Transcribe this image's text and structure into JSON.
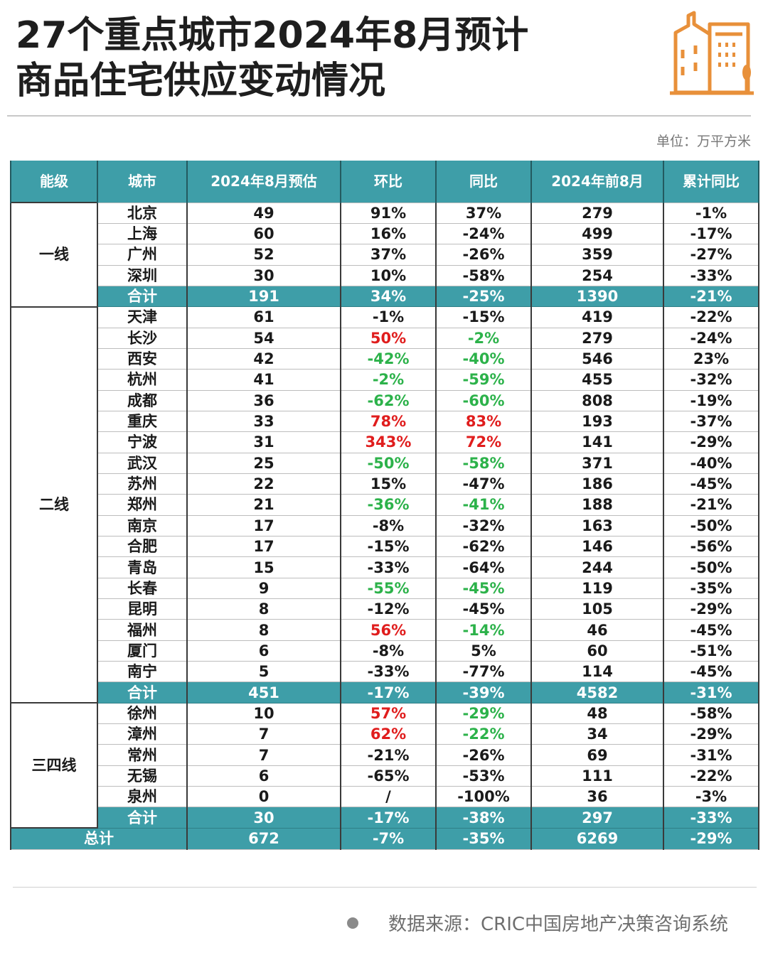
{
  "title": {
    "line1": "27个重点城市2024年8月预计",
    "line2": "商品住宅供应变动情况"
  },
  "logo_icon": "city-buildings-icon",
  "accent_color": "#3e9ea8",
  "unit": "单位：万平方米",
  "table": {
    "headers": [
      "能级",
      "城市",
      "2024年8月预估",
      "环比",
      "同比",
      "2024年前8月",
      "累计同比"
    ],
    "groups": [
      {
        "tier": "一线",
        "rows": [
          {
            "city": "北京",
            "est": "49",
            "mom": "91%",
            "yoy": "37%",
            "ytd": "279",
            "cum": "-1%"
          },
          {
            "city": "上海",
            "est": "60",
            "mom": "16%",
            "yoy": "-24%",
            "ytd": "499",
            "cum": "-17%"
          },
          {
            "city": "广州",
            "est": "52",
            "mom": "37%",
            "yoy": "-26%",
            "ytd": "359",
            "cum": "-27%"
          },
          {
            "city": "深圳",
            "est": "30",
            "mom": "10%",
            "yoy": "-58%",
            "ytd": "254",
            "cum": "-33%"
          }
        ],
        "subtotal": {
          "city": "合计",
          "est": "191",
          "mom": "34%",
          "yoy": "-25%",
          "ytd": "1390",
          "cum": "-21%"
        }
      },
      {
        "tier": "二线",
        "rows": [
          {
            "city": "天津",
            "est": "61",
            "mom": "-1%",
            "yoy": "-15%",
            "ytd": "419",
            "cum": "-22%"
          },
          {
            "city": "长沙",
            "est": "54",
            "mom": "50%",
            "mom_color": "red",
            "yoy": "-2%",
            "yoy_color": "green",
            "ytd": "279",
            "cum": "-24%"
          },
          {
            "city": "西安",
            "est": "42",
            "mom": "-42%",
            "mom_color": "green",
            "yoy": "-40%",
            "yoy_color": "green",
            "ytd": "546",
            "cum": "23%"
          },
          {
            "city": "杭州",
            "est": "41",
            "mom": "-2%",
            "mom_color": "green",
            "yoy": "-59%",
            "yoy_color": "green",
            "ytd": "455",
            "cum": "-32%"
          },
          {
            "city": "成都",
            "est": "36",
            "mom": "-62%",
            "mom_color": "green",
            "yoy": "-60%",
            "yoy_color": "green",
            "ytd": "808",
            "cum": "-19%"
          },
          {
            "city": "重庆",
            "est": "33",
            "mom": "78%",
            "mom_color": "red",
            "yoy": "83%",
            "yoy_color": "red",
            "ytd": "193",
            "cum": "-37%"
          },
          {
            "city": "宁波",
            "est": "31",
            "mom": "343%",
            "mom_color": "red",
            "yoy": "72%",
            "yoy_color": "red",
            "ytd": "141",
            "cum": "-29%"
          },
          {
            "city": "武汉",
            "est": "25",
            "mom": "-50%",
            "mom_color": "green",
            "yoy": "-58%",
            "yoy_color": "green",
            "ytd": "371",
            "cum": "-40%"
          },
          {
            "city": "苏州",
            "est": "22",
            "mom": "15%",
            "yoy": "-47%",
            "ytd": "186",
            "cum": "-45%"
          },
          {
            "city": "郑州",
            "est": "21",
            "mom": "-36%",
            "mom_color": "green",
            "yoy": "-41%",
            "yoy_color": "green",
            "ytd": "188",
            "cum": "-21%"
          },
          {
            "city": "南京",
            "est": "17",
            "mom": "-8%",
            "yoy": "-32%",
            "ytd": "163",
            "cum": "-50%"
          },
          {
            "city": "合肥",
            "est": "17",
            "mom": "-15%",
            "yoy": "-62%",
            "ytd": "146",
            "cum": "-56%"
          },
          {
            "city": "青岛",
            "est": "15",
            "mom": "-33%",
            "yoy": "-64%",
            "ytd": "244",
            "cum": "-50%"
          },
          {
            "city": "长春",
            "est": "9",
            "mom": "-55%",
            "mom_color": "green",
            "yoy": "-45%",
            "yoy_color": "green",
            "ytd": "119",
            "cum": "-35%"
          },
          {
            "city": "昆明",
            "est": "8",
            "mom": "-12%",
            "yoy": "-45%",
            "ytd": "105",
            "cum": "-29%"
          },
          {
            "city": "福州",
            "est": "8",
            "mom": "56%",
            "mom_color": "red",
            "yoy": "-14%",
            "yoy_color": "green",
            "ytd": "46",
            "cum": "-45%"
          },
          {
            "city": "厦门",
            "est": "6",
            "mom": "-8%",
            "yoy": "5%",
            "ytd": "60",
            "cum": "-51%"
          },
          {
            "city": "南宁",
            "est": "5",
            "mom": "-33%",
            "yoy": "-77%",
            "ytd": "114",
            "cum": "-45%"
          }
        ],
        "subtotal": {
          "city": "合计",
          "est": "451",
          "mom": "-17%",
          "yoy": "-39%",
          "ytd": "4582",
          "cum": "-31%"
        }
      },
      {
        "tier": "三四线",
        "rows": [
          {
            "city": "徐州",
            "est": "10",
            "mom": "57%",
            "mom_color": "red",
            "yoy": "-29%",
            "yoy_color": "green",
            "ytd": "48",
            "cum": "-58%"
          },
          {
            "city": "漳州",
            "est": "7",
            "mom": "62%",
            "mom_color": "red",
            "yoy": "-22%",
            "yoy_color": "green",
            "ytd": "34",
            "cum": "-29%"
          },
          {
            "city": "常州",
            "est": "7",
            "mom": "-21%",
            "yoy": "-26%",
            "ytd": "69",
            "cum": "-31%"
          },
          {
            "city": "无锡",
            "est": "6",
            "mom": "-65%",
            "yoy": "-53%",
            "ytd": "111",
            "cum": "-22%"
          },
          {
            "city": "泉州",
            "est": "0",
            "mom": "/",
            "yoy": "-100%",
            "ytd": "36",
            "cum": "-3%"
          }
        ],
        "subtotal": {
          "city": "合计",
          "est": "30",
          "mom": "-17%",
          "yoy": "-38%",
          "ytd": "297",
          "cum": "-33%"
        }
      }
    ],
    "grand_total": {
      "label": "总计",
      "est": "672",
      "mom": "-7%",
      "yoy": "-35%",
      "ytd": "6269",
      "cum": "-29%"
    }
  },
  "source": "数据来源：CRIC中国房地产决策咨询系统"
}
